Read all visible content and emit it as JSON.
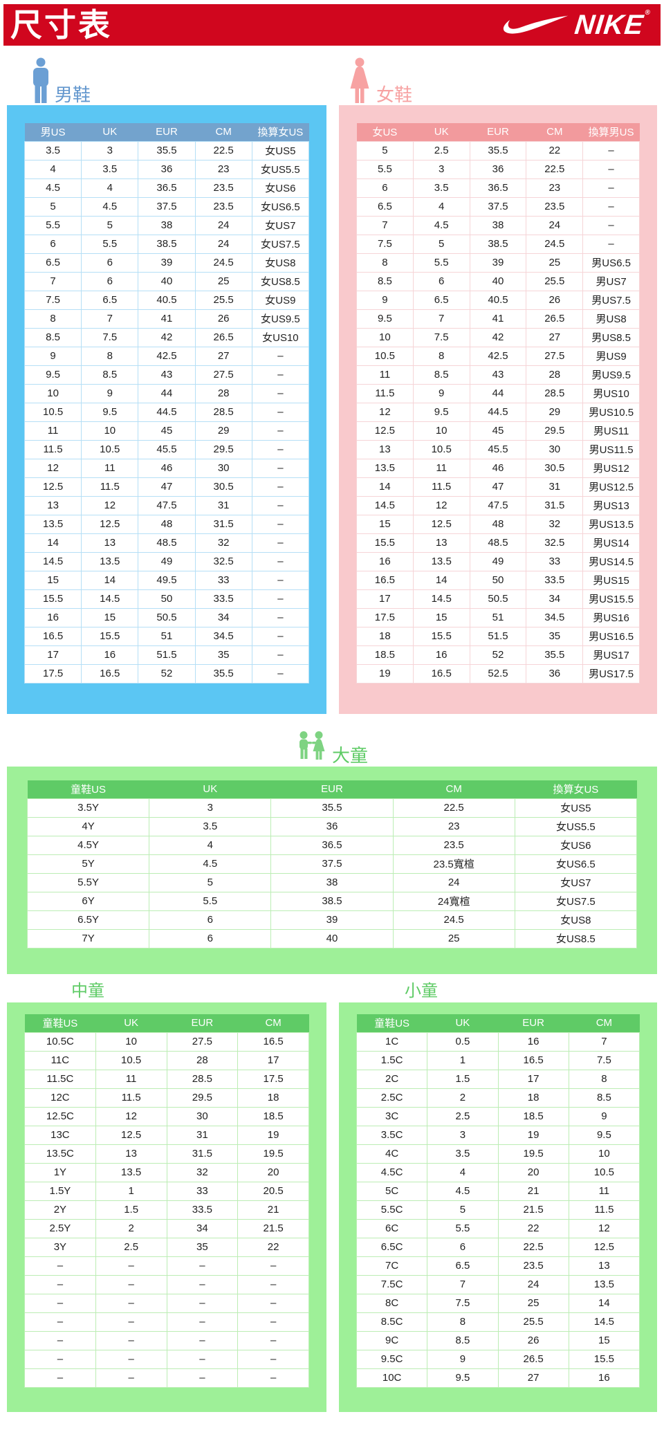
{
  "banner": {
    "title": "尺寸表",
    "brand": "NIKE",
    "reg_mark": "®"
  },
  "colors": {
    "banner_red": "#D0061E",
    "men_blue_panel": "#5BC6F3",
    "men_blue_header": "#73A3CD",
    "men_blue_label": "#6397CE",
    "women_pink_panel": "#F9C9CC",
    "women_pink_header": "#F29A9D",
    "women_pink_label": "#F7A2A2",
    "kids_green_panel": "#9EF098",
    "kids_green_header": "#5FCB66",
    "kids_green_label": "#5FCB66"
  },
  "icons": {
    "man": "man-icon",
    "woman": "woman-icon",
    "kids": "two-children-icon"
  },
  "sections": {
    "men": {
      "label": "男鞋",
      "headers": [
        "男US",
        "UK",
        "EUR",
        "CM",
        "換算女US"
      ],
      "rows": [
        [
          "3.5",
          "3",
          "35.5",
          "22.5",
          "女US5"
        ],
        [
          "4",
          "3.5",
          "36",
          "23",
          "女US5.5"
        ],
        [
          "4.5",
          "4",
          "36.5",
          "23.5",
          "女US6"
        ],
        [
          "5",
          "4.5",
          "37.5",
          "23.5",
          "女US6.5"
        ],
        [
          "5.5",
          "5",
          "38",
          "24",
          "女US7"
        ],
        [
          "6",
          "5.5",
          "38.5",
          "24",
          "女US7.5"
        ],
        [
          "6.5",
          "6",
          "39",
          "24.5",
          "女US8"
        ],
        [
          "7",
          "6",
          "40",
          "25",
          "女US8.5"
        ],
        [
          "7.5",
          "6.5",
          "40.5",
          "25.5",
          "女US9"
        ],
        [
          "8",
          "7",
          "41",
          "26",
          "女US9.5"
        ],
        [
          "8.5",
          "7.5",
          "42",
          "26.5",
          "女US10"
        ],
        [
          "9",
          "8",
          "42.5",
          "27",
          "–"
        ],
        [
          "9.5",
          "8.5",
          "43",
          "27.5",
          "–"
        ],
        [
          "10",
          "9",
          "44",
          "28",
          "–"
        ],
        [
          "10.5",
          "9.5",
          "44.5",
          "28.5",
          "–"
        ],
        [
          "11",
          "10",
          "45",
          "29",
          "–"
        ],
        [
          "11.5",
          "10.5",
          "45.5",
          "29.5",
          "–"
        ],
        [
          "12",
          "11",
          "46",
          "30",
          "–"
        ],
        [
          "12.5",
          "11.5",
          "47",
          "30.5",
          "–"
        ],
        [
          "13",
          "12",
          "47.5",
          "31",
          "–"
        ],
        [
          "13.5",
          "12.5",
          "48",
          "31.5",
          "–"
        ],
        [
          "14",
          "13",
          "48.5",
          "32",
          "–"
        ],
        [
          "14.5",
          "13.5",
          "49",
          "32.5",
          "–"
        ],
        [
          "15",
          "14",
          "49.5",
          "33",
          "–"
        ],
        [
          "15.5",
          "14.5",
          "50",
          "33.5",
          "–"
        ],
        [
          "16",
          "15",
          "50.5",
          "34",
          "–"
        ],
        [
          "16.5",
          "15.5",
          "51",
          "34.5",
          "–"
        ],
        [
          "17",
          "16",
          "51.5",
          "35",
          "–"
        ],
        [
          "17.5",
          "16.5",
          "52",
          "35.5",
          "–"
        ]
      ]
    },
    "women": {
      "label": "女鞋",
      "headers": [
        "女US",
        "UK",
        "EUR",
        "CM",
        "換算男US"
      ],
      "rows": [
        [
          "5",
          "2.5",
          "35.5",
          "22",
          "–"
        ],
        [
          "5.5",
          "3",
          "36",
          "22.5",
          "–"
        ],
        [
          "6",
          "3.5",
          "36.5",
          "23",
          "–"
        ],
        [
          "6.5",
          "4",
          "37.5",
          "23.5",
          "–"
        ],
        [
          "7",
          "4.5",
          "38",
          "24",
          "–"
        ],
        [
          "7.5",
          "5",
          "38.5",
          "24.5",
          "–"
        ],
        [
          "8",
          "5.5",
          "39",
          "25",
          "男US6.5"
        ],
        [
          "8.5",
          "6",
          "40",
          "25.5",
          "男US7"
        ],
        [
          "9",
          "6.5",
          "40.5",
          "26",
          "男US7.5"
        ],
        [
          "9.5",
          "7",
          "41",
          "26.5",
          "男US8"
        ],
        [
          "10",
          "7.5",
          "42",
          "27",
          "男US8.5"
        ],
        [
          "10.5",
          "8",
          "42.5",
          "27.5",
          "男US9"
        ],
        [
          "11",
          "8.5",
          "43",
          "28",
          "男US9.5"
        ],
        [
          "11.5",
          "9",
          "44",
          "28.5",
          "男US10"
        ],
        [
          "12",
          "9.5",
          "44.5",
          "29",
          "男US10.5"
        ],
        [
          "12.5",
          "10",
          "45",
          "29.5",
          "男US11"
        ],
        [
          "13",
          "10.5",
          "45.5",
          "30",
          "男US11.5"
        ],
        [
          "13.5",
          "11",
          "46",
          "30.5",
          "男US12"
        ],
        [
          "14",
          "11.5",
          "47",
          "31",
          "男US12.5"
        ],
        [
          "14.5",
          "12",
          "47.5",
          "31.5",
          "男US13"
        ],
        [
          "15",
          "12.5",
          "48",
          "32",
          "男US13.5"
        ],
        [
          "15.5",
          "13",
          "48.5",
          "32.5",
          "男US14"
        ],
        [
          "16",
          "13.5",
          "49",
          "33",
          "男US14.5"
        ],
        [
          "16.5",
          "14",
          "50",
          "33.5",
          "男US15"
        ],
        [
          "17",
          "14.5",
          "50.5",
          "34",
          "男US15.5"
        ],
        [
          "17.5",
          "15",
          "51",
          "34.5",
          "男US16"
        ],
        [
          "18",
          "15.5",
          "51.5",
          "35",
          "男US16.5"
        ],
        [
          "18.5",
          "16",
          "52",
          "35.5",
          "男US17"
        ],
        [
          "19",
          "16.5",
          "52.5",
          "36",
          "男US17.5"
        ]
      ]
    },
    "big_kids": {
      "label": "大童",
      "headers": [
        "童鞋US",
        "UK",
        "EUR",
        "CM",
        "換算女US"
      ],
      "rows": [
        [
          "3.5Y",
          "3",
          "35.5",
          "22.5",
          "女US5"
        ],
        [
          "4Y",
          "3.5",
          "36",
          "23",
          "女US5.5"
        ],
        [
          "4.5Y",
          "4",
          "36.5",
          "23.5",
          "女US6"
        ],
        [
          "5Y",
          "4.5",
          "37.5",
          "23.5寬楦",
          "女US6.5"
        ],
        [
          "5.5Y",
          "5",
          "38",
          "24",
          "女US7"
        ],
        [
          "6Y",
          "5.5",
          "38.5",
          "24寬楦",
          "女US7.5"
        ],
        [
          "6.5Y",
          "6",
          "39",
          "24.5",
          "女US8"
        ],
        [
          "7Y",
          "6",
          "40",
          "25",
          "女US8.5"
        ]
      ]
    },
    "mid_kids": {
      "label": "中童",
      "headers": [
        "童鞋US",
        "UK",
        "EUR",
        "CM"
      ],
      "rows": [
        [
          "10.5C",
          "10",
          "27.5",
          "16.5"
        ],
        [
          "11C",
          "10.5",
          "28",
          "17"
        ],
        [
          "11.5C",
          "11",
          "28.5",
          "17.5"
        ],
        [
          "12C",
          "11.5",
          "29.5",
          "18"
        ],
        [
          "12.5C",
          "12",
          "30",
          "18.5"
        ],
        [
          "13C",
          "12.5",
          "31",
          "19"
        ],
        [
          "13.5C",
          "13",
          "31.5",
          "19.5"
        ],
        [
          "1Y",
          "13.5",
          "32",
          "20"
        ],
        [
          "1.5Y",
          "1",
          "33",
          "20.5"
        ],
        [
          "2Y",
          "1.5",
          "33.5",
          "21"
        ],
        [
          "2.5Y",
          "2",
          "34",
          "21.5"
        ],
        [
          "3Y",
          "2.5",
          "35",
          "22"
        ],
        [
          "–",
          "–",
          "–",
          "–"
        ],
        [
          "–",
          "–",
          "–",
          "–"
        ],
        [
          "–",
          "–",
          "–",
          "–"
        ],
        [
          "–",
          "–",
          "–",
          "–"
        ],
        [
          "–",
          "–",
          "–",
          "–"
        ],
        [
          "–",
          "–",
          "–",
          "–"
        ],
        [
          "–",
          "–",
          "–",
          "–"
        ]
      ]
    },
    "small_kids": {
      "label": "小童",
      "headers": [
        "童鞋US",
        "UK",
        "EUR",
        "CM"
      ],
      "rows": [
        [
          "1C",
          "0.5",
          "16",
          "7"
        ],
        [
          "1.5C",
          "1",
          "16.5",
          "7.5"
        ],
        [
          "2C",
          "1.5",
          "17",
          "8"
        ],
        [
          "2.5C",
          "2",
          "18",
          "8.5"
        ],
        [
          "3C",
          "2.5",
          "18.5",
          "9"
        ],
        [
          "3.5C",
          "3",
          "19",
          "9.5"
        ],
        [
          "4C",
          "3.5",
          "19.5",
          "10"
        ],
        [
          "4.5C",
          "4",
          "20",
          "10.5"
        ],
        [
          "5C",
          "4.5",
          "21",
          "11"
        ],
        [
          "5.5C",
          "5",
          "21.5",
          "11.5"
        ],
        [
          "6C",
          "5.5",
          "22",
          "12"
        ],
        [
          "6.5C",
          "6",
          "22.5",
          "12.5"
        ],
        [
          "7C",
          "6.5",
          "23.5",
          "13"
        ],
        [
          "7.5C",
          "7",
          "24",
          "13.5"
        ],
        [
          "8C",
          "7.5",
          "25",
          "14"
        ],
        [
          "8.5C",
          "8",
          "25.5",
          "14.5"
        ],
        [
          "9C",
          "8.5",
          "26",
          "15"
        ],
        [
          "9.5C",
          "9",
          "26.5",
          "15.5"
        ],
        [
          "10C",
          "9.5",
          "27",
          "16"
        ]
      ]
    }
  }
}
